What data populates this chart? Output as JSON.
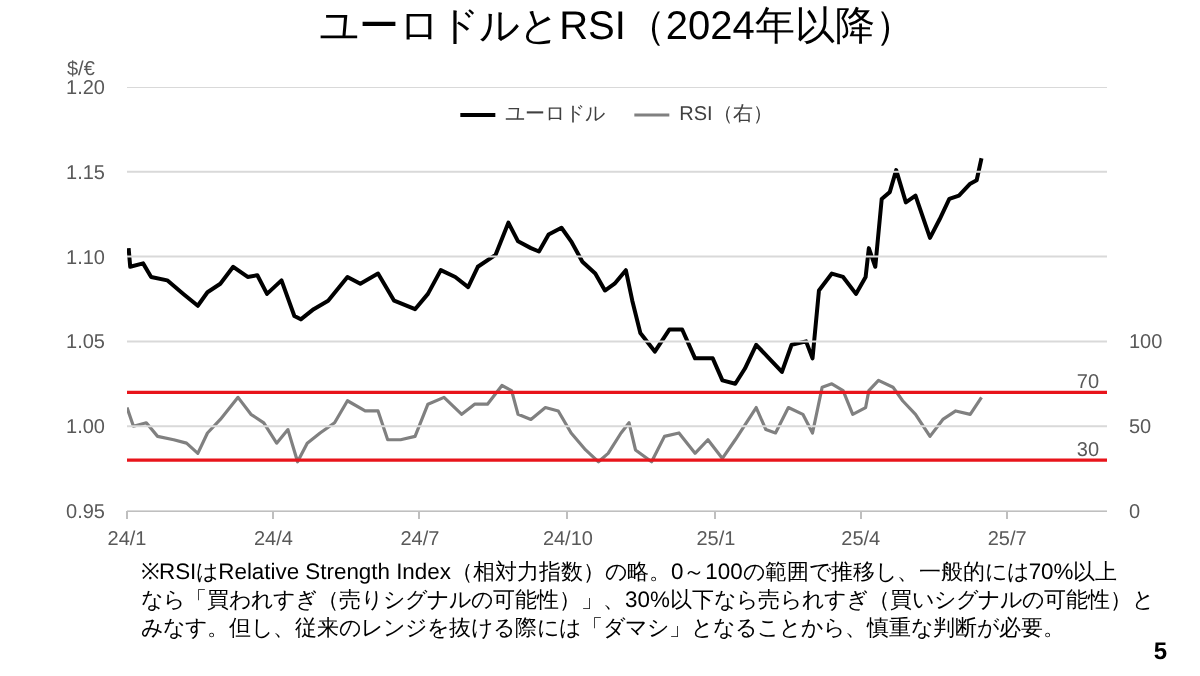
{
  "chart_data": {
    "type": "line",
    "title": "ユーロドルとRSI（2024年以降）",
    "ylabel": "$/€",
    "xlim": [
      "2024-01-01",
      "2025-09-01"
    ],
    "xticks": [
      {
        "value": "2024-01-01",
        "label": "24/1"
      },
      {
        "value": "2024-04-01",
        "label": "24/4"
      },
      {
        "value": "2024-07-01",
        "label": "24/7"
      },
      {
        "value": "2024-10-01",
        "label": "24/10"
      },
      {
        "value": "2025-01-01",
        "label": "25/1"
      },
      {
        "value": "2025-04-01",
        "label": "25/4"
      },
      {
        "value": "2025-07-01",
        "label": "25/7"
      }
    ],
    "ylim": [
      0.95,
      1.2
    ],
    "yticks": [
      {
        "value": 0.95,
        "label": "0.95"
      },
      {
        "value": 1.0,
        "label": "1.00"
      },
      {
        "value": 1.05,
        "label": "1.05"
      },
      {
        "value": 1.1,
        "label": "1.10"
      },
      {
        "value": 1.15,
        "label": "1.15"
      },
      {
        "value": 1.2,
        "label": "1.20"
      }
    ],
    "y2lim": [
      0,
      250
    ],
    "y2ticks": [
      0,
      50,
      100
    ],
    "grid": "y",
    "legend": "top",
    "marker": "none",
    "line_style": "solid",
    "series": [
      {
        "name": "ユーロドル",
        "color": "#000000",
        "x": [
          "2024-01-02",
          "2024-01-03",
          "2024-01-11",
          "2024-01-16",
          "2024-01-26",
          "2024-02-05",
          "2024-02-14",
          "2024-02-20",
          "2024-02-28",
          "2024-03-07",
          "2024-03-16",
          "2024-03-22",
          "2024-03-28",
          "2024-04-06",
          "2024-04-14",
          "2024-04-18",
          "2024-04-26",
          "2024-05-05",
          "2024-05-17",
          "2024-05-25",
          "2024-06-05",
          "2024-06-15",
          "2024-06-28",
          "2024-07-06",
          "2024-07-14",
          "2024-07-23",
          "2024-07-31",
          "2024-08-06",
          "2024-08-17",
          "2024-08-25",
          "2024-08-31",
          "2024-09-08",
          "2024-09-13",
          "2024-09-19",
          "2024-09-27",
          "2024-10-03",
          "2024-10-10",
          "2024-10-18",
          "2024-10-24",
          "2024-10-30",
          "2024-11-06",
          "2024-11-10",
          "2024-11-15",
          "2024-11-24",
          "2024-12-03",
          "2024-12-11",
          "2024-12-19",
          "2024-12-30",
          "2025-01-05",
          "2025-01-13",
          "2025-01-19",
          "2025-01-26",
          "2025-02-03",
          "2025-02-11",
          "2025-02-17",
          "2025-02-26",
          "2025-03-02",
          "2025-03-06",
          "2025-03-14",
          "2025-03-21",
          "2025-03-29",
          "2025-04-04",
          "2025-04-06",
          "2025-04-10",
          "2025-04-14",
          "2025-04-19",
          "2025-04-23",
          "2025-04-29",
          "2025-05-05",
          "2025-05-14",
          "2025-05-20",
          "2025-05-26",
          "2025-06-01",
          "2025-06-08",
          "2025-06-12",
          "2025-06-15"
        ],
        "values": [
          1.105,
          1.094,
          1.096,
          1.088,
          1.086,
          1.078,
          1.071,
          1.079,
          1.084,
          1.094,
          1.088,
          1.089,
          1.078,
          1.086,
          1.065,
          1.063,
          1.069,
          1.074,
          1.088,
          1.084,
          1.09,
          1.074,
          1.069,
          1.078,
          1.092,
          1.088,
          1.082,
          1.094,
          1.101,
          1.12,
          1.109,
          1.105,
          1.103,
          1.113,
          1.117,
          1.109,
          1.097,
          1.09,
          1.08,
          1.084,
          1.092,
          1.074,
          1.055,
          1.044,
          1.057,
          1.057,
          1.04,
          1.04,
          1.027,
          1.025,
          1.034,
          1.048,
          1.04,
          1.032,
          1.048,
          1.05,
          1.04,
          1.08,
          1.09,
          1.088,
          1.078,
          1.088,
          1.105,
          1.094,
          1.134,
          1.138,
          1.151,
          1.132,
          1.136,
          1.111,
          1.122,
          1.134,
          1.136,
          1.143,
          1.145,
          1.158
        ]
      },
      {
        "name": "RSI（右）",
        "color": "#808080",
        "axis": "y2",
        "x": [
          "2024-01-01",
          "2024-01-05",
          "2024-01-13",
          "2024-01-20",
          "2024-01-30",
          "2024-02-07",
          "2024-02-14",
          "2024-02-20",
          "2024-02-28",
          "2024-03-10",
          "2024-03-18",
          "2024-03-26",
          "2024-04-03",
          "2024-04-10",
          "2024-04-16",
          "2024-04-22",
          "2024-04-30",
          "2024-05-09",
          "2024-05-17",
          "2024-05-28",
          "2024-06-05",
          "2024-06-11",
          "2024-06-19",
          "2024-06-28",
          "2024-07-06",
          "2024-07-16",
          "2024-07-27",
          "2024-08-04",
          "2024-08-12",
          "2024-08-21",
          "2024-08-27",
          "2024-08-31",
          "2024-09-08",
          "2024-09-17",
          "2024-09-25",
          "2024-10-03",
          "2024-10-12",
          "2024-10-20",
          "2024-10-26",
          "2024-11-03",
          "2024-11-08",
          "2024-11-12",
          "2024-11-22",
          "2024-11-30",
          "2024-12-09",
          "2024-12-19",
          "2024-12-27",
          "2025-01-05",
          "2025-01-13",
          "2025-01-26",
          "2025-02-01",
          "2025-02-07",
          "2025-02-15",
          "2025-02-24",
          "2025-03-02",
          "2025-03-08",
          "2025-03-14",
          "2025-03-21",
          "2025-03-27",
          "2025-04-04",
          "2025-04-06",
          "2025-04-12",
          "2025-04-21",
          "2025-04-27",
          "2025-05-05",
          "2025-05-14",
          "2025-05-22",
          "2025-05-30",
          "2025-06-08",
          "2025-06-15"
        ],
        "values": [
          61,
          50,
          52,
          44,
          42,
          40,
          34,
          46,
          54,
          67,
          57,
          52,
          40,
          48,
          29,
          40,
          46,
          52,
          65,
          59,
          59,
          42,
          42,
          44,
          63,
          67,
          57,
          63,
          63,
          74,
          71,
          57,
          54,
          61,
          59,
          46,
          36,
          29,
          34,
          46,
          52,
          36,
          29,
          44,
          46,
          34,
          42,
          31,
          42,
          61,
          48,
          46,
          61,
          57,
          46,
          73,
          75,
          71,
          57,
          61,
          71,
          77,
          73,
          65,
          57,
          44,
          54,
          59,
          57,
          67
        ]
      }
    ],
    "ref_lines": [
      {
        "axis": "y2",
        "value": 70,
        "label": "70",
        "color": "#e8141b"
      },
      {
        "axis": "y2",
        "value": 30,
        "label": "30",
        "color": "#e8141b"
      }
    ],
    "annotations": [
      "※RSIはRelative Strength Index（相対力指数）の略。0～100の範囲で推移し、一般的には70%以上なら「買われすぎ（売りシグナルの可能性）」、30%以下なら売られすぎ（買いシグナルの可能性）とみなす。但し、従来のレンジを抜ける際には「ダマシ」となることから、慎重な判断が必要。",
      "5"
    ]
  }
}
